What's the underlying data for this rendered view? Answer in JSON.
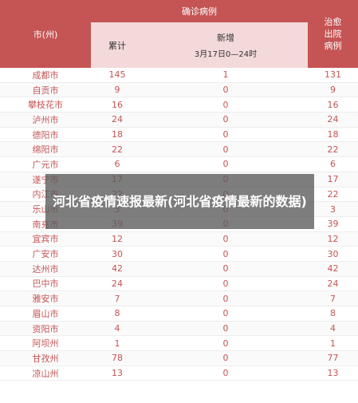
{
  "table": {
    "headers": {
      "city": "市(州)",
      "confirmed": "确诊病例",
      "cumulative": "累计",
      "new_title": "新增",
      "new_date": "3月17日0—24时",
      "cured": "治愈出院病例"
    },
    "rows": [
      {
        "city": "成都市",
        "cum": "145",
        "new": "1",
        "cured": "131"
      },
      {
        "city": "自贡市",
        "cum": "9",
        "new": "0",
        "cured": "9"
      },
      {
        "city": "攀枝花市",
        "cum": "16",
        "new": "0",
        "cured": "16"
      },
      {
        "city": "泸州市",
        "cum": "24",
        "new": "0",
        "cured": "24"
      },
      {
        "city": "德阳市",
        "cum": "18",
        "new": "0",
        "cured": "18"
      },
      {
        "city": "绵阳市",
        "cum": "22",
        "new": "0",
        "cured": "22"
      },
      {
        "city": "广元市",
        "cum": "6",
        "new": "0",
        "cured": "6"
      },
      {
        "city": "遂宁市",
        "cum": "17",
        "new": "0",
        "cured": "17"
      },
      {
        "city": "内江市",
        "cum": "22",
        "new": "0",
        "cured": "22"
      },
      {
        "city": "乐山市",
        "cum": "3",
        "new": "0",
        "cured": "3"
      },
      {
        "city": "南充市",
        "cum": "39",
        "new": "0",
        "cured": "39"
      },
      {
        "city": "宜宾市",
        "cum": "12",
        "new": "0",
        "cured": "12"
      },
      {
        "city": "广安市",
        "cum": "30",
        "new": "0",
        "cured": "30"
      },
      {
        "city": "达州市",
        "cum": "42",
        "new": "0",
        "cured": "42"
      },
      {
        "city": "巴中市",
        "cum": "24",
        "new": "0",
        "cured": "24"
      },
      {
        "city": "雅安市",
        "cum": "7",
        "new": "0",
        "cured": "7"
      },
      {
        "city": "眉山市",
        "cum": "8",
        "new": "0",
        "cured": "8"
      },
      {
        "city": "资阳市",
        "cum": "4",
        "new": "0",
        "cured": "4"
      },
      {
        "city": "阿坝州",
        "cum": "1",
        "new": "0",
        "cured": "1"
      },
      {
        "city": "甘孜州",
        "cum": "78",
        "new": "0",
        "cured": "77"
      },
      {
        "city": "凉山州",
        "cum": "13",
        "new": "0",
        "cured": "13"
      }
    ]
  },
  "overlay": {
    "title": "河北省疫情速报最新(河北省疫情最新的数据)"
  },
  "colors": {
    "header_red": "#c55454",
    "subheader_pink": "#f3d9d9",
    "overlay_gray": "#5a5a5a"
  }
}
